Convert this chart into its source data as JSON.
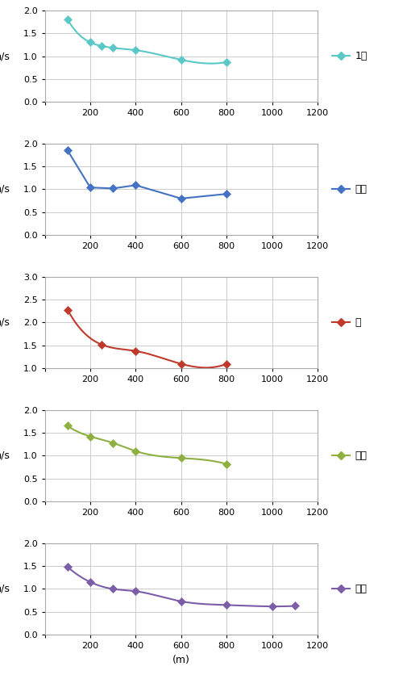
{
  "seasons": [
    {
      "label": "1년",
      "color": "#5BC8C8",
      "marker": "D",
      "x": [
        100,
        200,
        250,
        300,
        400,
        600,
        800
      ],
      "y": [
        1.8,
        1.3,
        1.22,
        1.18,
        1.13,
        0.92,
        0.87
      ],
      "ylim": [
        0,
        2
      ],
      "yticks": [
        0,
        0.5,
        1.0,
        1.5,
        2.0
      ],
      "smooth": true
    },
    {
      "label": "곌울",
      "color": "#4472C4",
      "marker": "D",
      "x": [
        100,
        200,
        300,
        400,
        600,
        800
      ],
      "y": [
        1.85,
        1.04,
        1.02,
        1.09,
        0.8,
        0.9
      ],
      "ylim": [
        0,
        2
      ],
      "yticks": [
        0,
        0.5,
        1.0,
        1.5,
        2.0
      ],
      "smooth": false
    },
    {
      "label": "봄",
      "color": "#C0392B",
      "marker": "s",
      "x": [
        100,
        250,
        400,
        600,
        800
      ],
      "y": [
        2.28,
        1.52,
        1.38,
        1.1,
        1.1
      ],
      "ylim": [
        1,
        3
      ],
      "yticks": [
        1.0,
        1.5,
        2.0,
        2.5,
        3.0
      ],
      "smooth": true
    },
    {
      "label": "여름",
      "color": "#8DB040",
      "marker": "D",
      "x": [
        100,
        200,
        300,
        400,
        600,
        800
      ],
      "y": [
        1.65,
        1.42,
        1.28,
        1.1,
        0.95,
        0.82
      ],
      "ylim": [
        0,
        2
      ],
      "yticks": [
        0,
        0.5,
        1.0,
        1.5,
        2.0
      ],
      "smooth": true
    },
    {
      "label": "가을",
      "color": "#7B5EA7",
      "marker": "D",
      "x": [
        100,
        200,
        300,
        400,
        600,
        800,
        1000,
        1100
      ],
      "y": [
        1.48,
        1.15,
        1.0,
        0.95,
        0.73,
        0.65,
        0.62,
        0.63
      ],
      "ylim": [
        0,
        2
      ],
      "yticks": [
        0,
        0.5,
        1.0,
        1.5,
        2.0
      ],
      "smooth": true
    }
  ],
  "xlabel": "(m)",
  "ylabel": "m/s",
  "xticks": [
    0,
    200,
    400,
    600,
    800,
    1000,
    1200
  ],
  "xlim": [
    0,
    1200
  ],
  "grid_color": "#CCCCCC",
  "bg_color": "#FFFFFF",
  "marker_size": 5,
  "line_width": 1.5
}
